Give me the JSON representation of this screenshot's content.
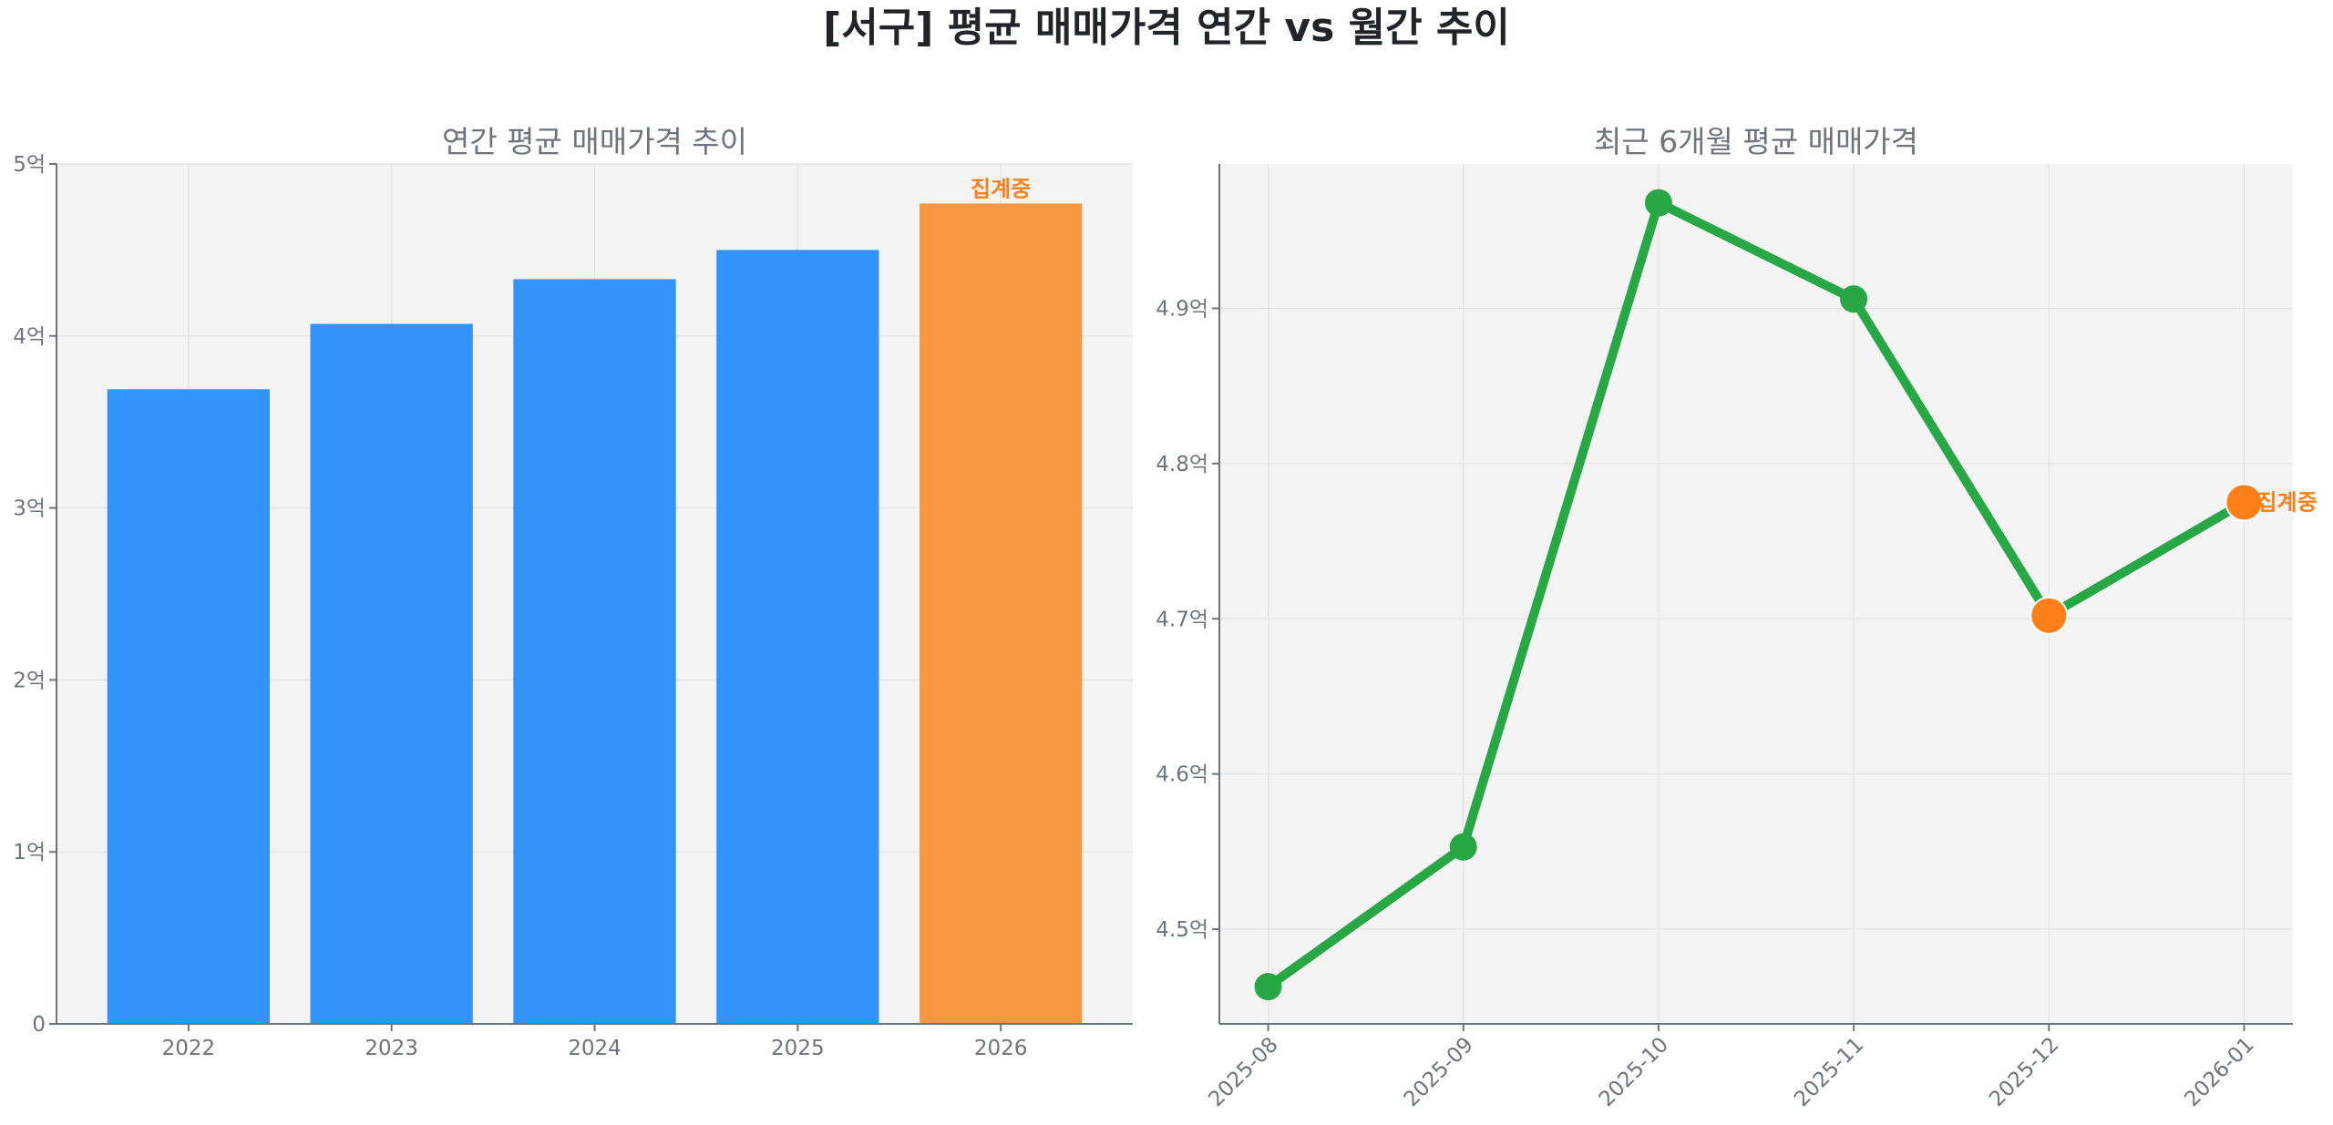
{
  "title": "[서구] 평균 매매가격 연간 vs 월간 추이",
  "colors": {
    "bar": "#3293fb",
    "bar_partial": "#f99740",
    "line": "#28a745",
    "marker_highlight": "#fd7f17",
    "plot_bg": "#f4f4f4",
    "annotation": "#fd7f17"
  },
  "chart_data": [
    {
      "type": "bar",
      "title": "연간 평균 매매가격 추이",
      "categories": [
        "2022",
        "2023",
        "2024",
        "2025",
        "2026"
      ],
      "values": [
        3.69,
        4.07,
        4.33,
        4.5,
        4.77
      ],
      "unit": "억",
      "ylim": [
        0,
        5
      ],
      "yticks": [
        0,
        1,
        2,
        3,
        4,
        5
      ],
      "ytick_labels": [
        "0",
        "1억",
        "2억",
        "3억",
        "4억",
        "5억"
      ],
      "grid": true,
      "highlight_index": 4,
      "annotation": {
        "index": 4,
        "text": "집계중"
      }
    },
    {
      "type": "line",
      "title": "최근 6개월 평균 매매가격",
      "categories": [
        "2025-08",
        "2025-09",
        "2025-10",
        "2025-11",
        "2025-12",
        "2026-01"
      ],
      "values": [
        4.463,
        4.553,
        4.968,
        4.906,
        4.702,
        4.775
      ],
      "unit": "억",
      "ylim": [
        4.439,
        4.993
      ],
      "yticks": [
        4.5,
        4.6,
        4.7,
        4.8,
        4.9
      ],
      "ytick_labels": [
        "4.5억",
        "4.6억",
        "4.7억",
        "4.8억",
        "4.9억"
      ],
      "grid": true,
      "highlight_indices": [
        4,
        5
      ],
      "annotation": {
        "index": 5,
        "text": "집계중"
      }
    }
  ]
}
